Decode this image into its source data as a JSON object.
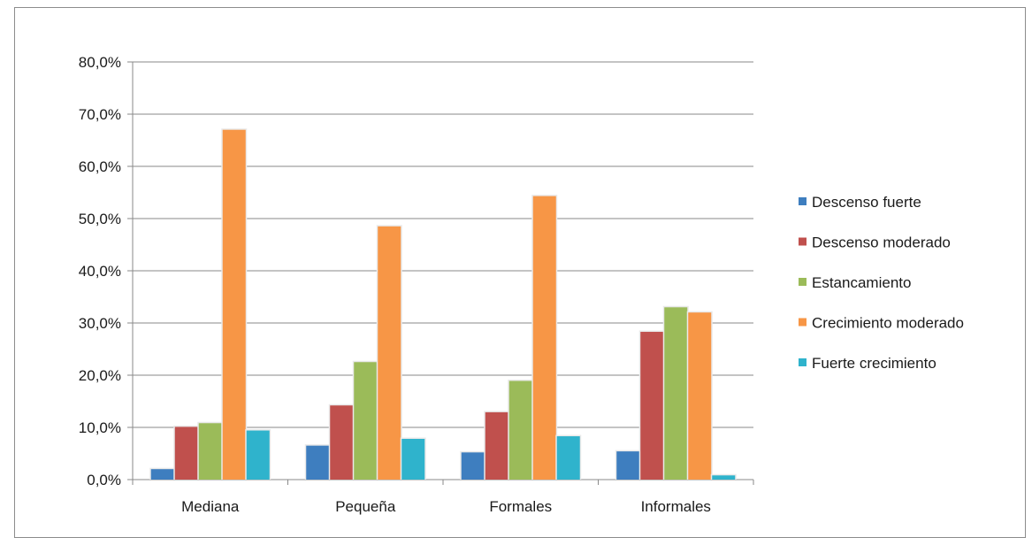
{
  "chart_data": {
    "type": "bar",
    "title": "",
    "xlabel": "",
    "ylabel": "",
    "ylim": [
      0,
      80
    ],
    "yticks": [
      0,
      10,
      20,
      30,
      40,
      50,
      60,
      70,
      80
    ],
    "ytick_labels": [
      "0,0%",
      "10,0%",
      "20,0%",
      "30,0%",
      "40,0%",
      "50,0%",
      "60,0%",
      "70,0%",
      "80,0%"
    ],
    "grid": true,
    "legend_position": "right",
    "categories": [
      "Mediana",
      "Pequeña",
      "Formales",
      "Informales"
    ],
    "series": [
      {
        "name": "Descenso fuerte",
        "color": "#3e7ebf",
        "values": [
          2.0,
          6.5,
          5.2,
          5.4
        ]
      },
      {
        "name": "Descenso moderado",
        "color": "#c0504d",
        "values": [
          10.1,
          14.2,
          12.9,
          28.3
        ]
      },
      {
        "name": "Estancamiento",
        "color": "#9bbb59",
        "values": [
          10.8,
          22.5,
          18.9,
          33.0
        ]
      },
      {
        "name": "Crecimiento moderado",
        "color": "#f79646",
        "values": [
          67.0,
          48.5,
          54.3,
          32.0
        ]
      },
      {
        "name": "Fuerte crecimiento",
        "color": "#2fb3cc",
        "values": [
          9.4,
          7.8,
          8.3,
          0.8
        ]
      }
    ]
  }
}
